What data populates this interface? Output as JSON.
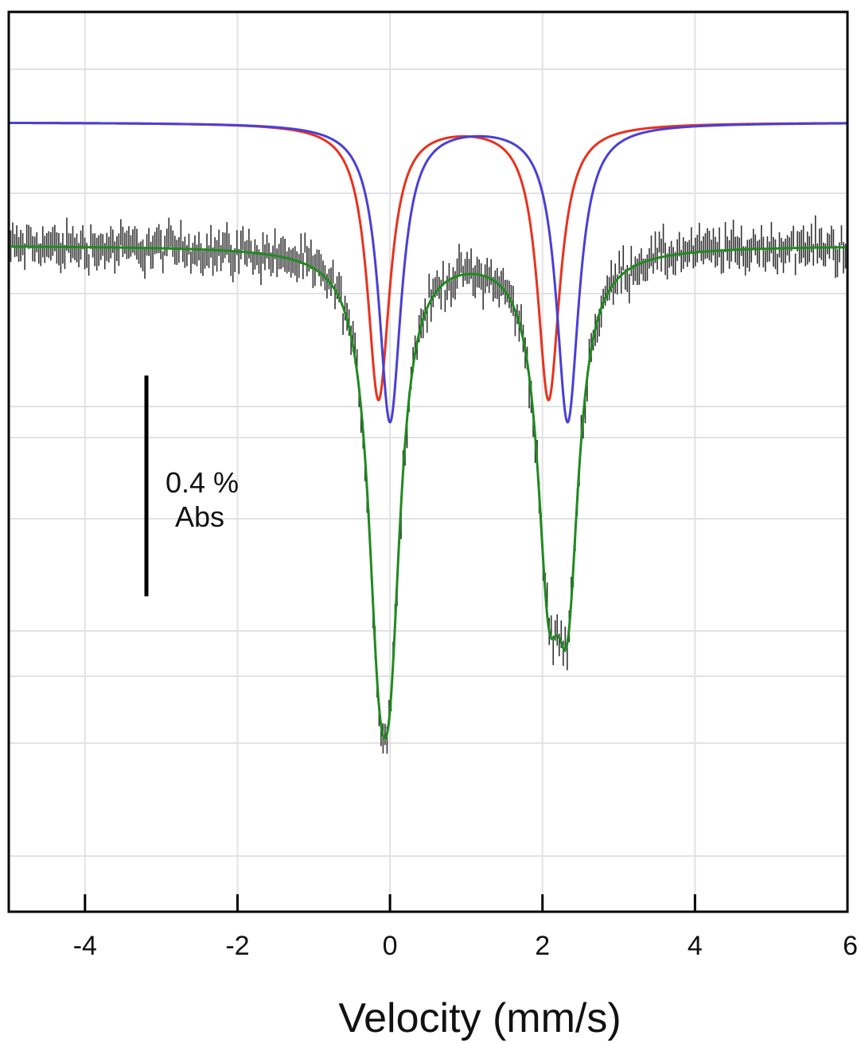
{
  "chart_data": {
    "type": "line",
    "xlabel": "Velocity (mm/s)",
    "xlim": [
      -5,
      6
    ],
    "xticks": [
      -4,
      -2,
      0,
      2,
      4,
      6
    ],
    "x_tick_labels": [
      "-4",
      "-2",
      "0",
      "2",
      "4",
      "6"
    ],
    "ylim": [
      -1.43,
      0.2
    ],
    "grid": true,
    "scale_bar": {
      "size": 0.4,
      "label_line1": "0.4 %",
      "label_line2": "Abs"
    },
    "series": [
      {
        "color": "#e8321e",
        "style": "line",
        "baseline": 0.0,
        "peaks": [
          {
            "center": -0.15,
            "depth": 0.5,
            "hwhm": 0.18
          },
          {
            "center": 2.08,
            "depth": 0.5,
            "hwhm": 0.18
          }
        ]
      },
      {
        "color": "#4a3fd6",
        "style": "line",
        "baseline": 0.0,
        "peaks": [
          {
            "center": 0.0,
            "depth": 0.54,
            "hwhm": 0.18
          },
          {
            "center": 2.33,
            "depth": 0.54,
            "hwhm": 0.18
          }
        ]
      },
      {
        "color": "#1f8a1f",
        "style": "line",
        "role": "fit",
        "baseline": -0.223,
        "peaks": [
          {
            "center": -0.15,
            "depth": 0.5,
            "hwhm": 0.18
          },
          {
            "center": 0.0,
            "depth": 0.54,
            "hwhm": 0.18
          },
          {
            "center": 2.08,
            "depth": 0.5,
            "hwhm": 0.18
          },
          {
            "center": 2.33,
            "depth": 0.54,
            "hwhm": 0.18
          }
        ]
      },
      {
        "color": "#333333",
        "style": "errorbars",
        "role": "data",
        "baseline": -0.223,
        "noise": 0.028,
        "n_points": 420
      }
    ]
  }
}
